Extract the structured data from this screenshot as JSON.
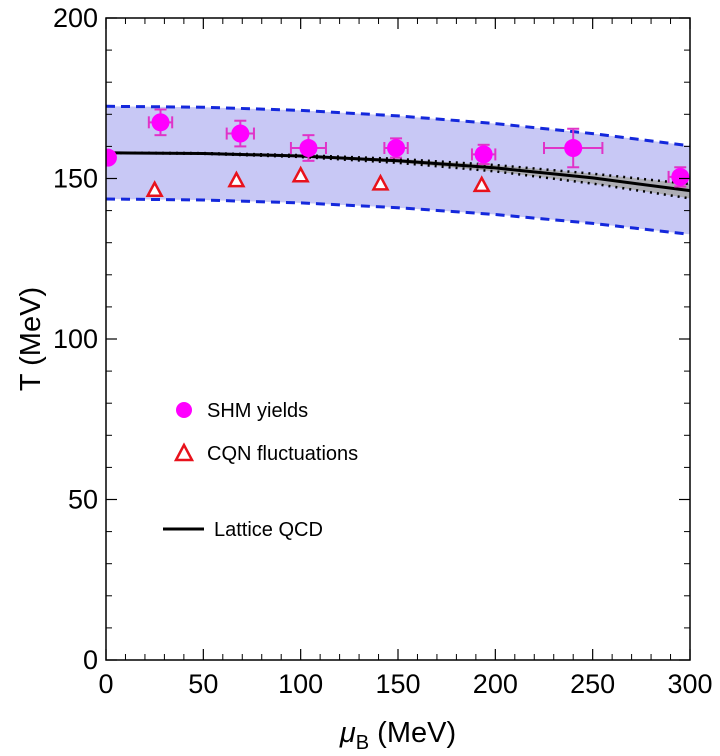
{
  "chart_data": {
    "type": "scatter",
    "xlabel_symbol": "μ",
    "xlabel_subscript": "B",
    "xlabel_unit": " (MeV)",
    "ylabel": "T (MeV)",
    "xlim": [
      0,
      300
    ],
    "ylim": [
      0,
      200
    ],
    "x_ticks": [
      0,
      50,
      100,
      150,
      200,
      250,
      300
    ],
    "y_ticks": [
      0,
      50,
      100,
      150,
      200
    ],
    "x_tick_labels": [
      "0",
      "50",
      "100",
      "150",
      "200",
      "250",
      "300"
    ],
    "y_tick_labels": [
      "0",
      "50",
      "100",
      "150",
      "200"
    ],
    "colors": {
      "shm": "#ff00ff",
      "shm_error": "#e033c8",
      "cqn": "#e8121c",
      "lattice": "#000000",
      "band_fill": "#c8c8f5",
      "band_edge": "#1428dc",
      "lattice_band": "#a8a8a8"
    },
    "band": {
      "x": [
        0,
        50,
        100,
        150,
        200,
        250,
        300
      ],
      "upper": [
        172.5,
        172.2,
        171.2,
        169.5,
        167.1,
        164.0,
        160.2
      ],
      "lower": [
        143.6,
        143.3,
        142.4,
        140.9,
        138.8,
        136.0,
        132.6
      ]
    },
    "lattice_qcd": {
      "x": [
        0,
        50,
        100,
        150,
        200,
        250,
        300
      ],
      "y": [
        158.0,
        157.8,
        157.0,
        155.5,
        153.3,
        150.2,
        146.2
      ],
      "lower": [
        158.0,
        157.7,
        156.7,
        154.9,
        152.2,
        148.4,
        143.8
      ],
      "upper": [
        158.0,
        157.9,
        157.3,
        156.1,
        154.2,
        151.5,
        148.3
      ]
    },
    "series": [
      {
        "name": "SHM yields",
        "marker": "circle",
        "points": [
          {
            "x": 1,
            "y": 156.5,
            "xerr": 1,
            "yerr": 1.5
          },
          {
            "x": 28,
            "y": 167.5,
            "xerr": 6,
            "yerr": 4
          },
          {
            "x": 69,
            "y": 164,
            "xerr": 7,
            "yerr": 4
          },
          {
            "x": 104,
            "y": 159.5,
            "xerr": 9,
            "yerr": 4
          },
          {
            "x": 149,
            "y": 159.5,
            "xerr": 6,
            "yerr": 3
          },
          {
            "x": 194,
            "y": 157.5,
            "xerr": 6,
            "yerr": 3
          },
          {
            "x": 240,
            "y": 159.5,
            "xerr": 15,
            "yerr": 6
          },
          {
            "x": 295,
            "y": 150.5,
            "xerr": 6,
            "yerr": 3
          }
        ]
      },
      {
        "name": "CQN fluctuations",
        "marker": "triangle",
        "points": [
          {
            "x": 25,
            "y": 146.5
          },
          {
            "x": 67,
            "y": 149.5
          },
          {
            "x": 100,
            "y": 151
          },
          {
            "x": 141,
            "y": 148.5
          },
          {
            "x": 193,
            "y": 148
          }
        ]
      },
      {
        "name": "Lattice QCD",
        "marker": "line"
      }
    ]
  }
}
